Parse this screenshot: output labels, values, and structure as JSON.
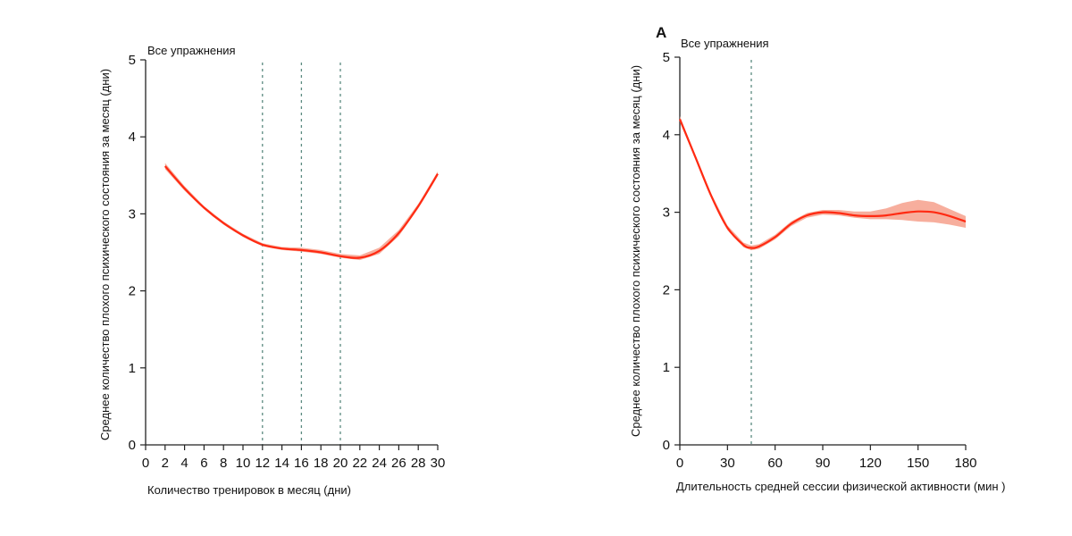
{
  "chart_data": [
    {
      "type": "line",
      "panel_label": "",
      "title": "Все упражнения",
      "xlabel": "Количество тренировок в месяц (дни)",
      "ylabel": "Среднее количество плохого психического состояния за месяц (дни)",
      "xlim": [
        0,
        30
      ],
      "ylim": [
        0,
        5
      ],
      "xticks": [
        "0",
        "2",
        "4",
        "6",
        "8",
        "10",
        "12",
        "14",
        "16",
        "18",
        "20",
        "22",
        "24",
        "26",
        "28",
        "30"
      ],
      "yticks": [
        "0",
        "1",
        "2",
        "3",
        "4",
        "5"
      ],
      "reference_lines_x": [
        12,
        16,
        20
      ],
      "series": [
        {
          "color": "#ff2a12",
          "x": [
            2,
            4,
            6,
            8,
            10,
            12,
            14,
            16,
            18,
            20,
            22,
            24,
            26,
            28,
            30
          ],
          "y": [
            3.62,
            3.33,
            3.08,
            2.88,
            2.72,
            2.6,
            2.55,
            2.53,
            2.5,
            2.45,
            2.43,
            2.52,
            2.75,
            3.1,
            3.52
          ],
          "ci_lower": [
            3.58,
            3.3,
            3.06,
            2.86,
            2.7,
            2.58,
            2.53,
            2.51,
            2.48,
            2.43,
            2.4,
            2.48,
            2.71,
            3.07,
            3.49
          ],
          "ci_upper": [
            3.66,
            3.36,
            3.1,
            2.9,
            2.74,
            2.62,
            2.57,
            2.56,
            2.53,
            2.48,
            2.46,
            2.56,
            2.79,
            3.13,
            3.55
          ]
        }
      ]
    },
    {
      "type": "line",
      "panel_label": "A",
      "title": "Все упражнения",
      "xlabel": "Длительность средней сессии физической активности (мин )",
      "ylabel": "Среднее количество плохого психического состояния за месяц (дни)",
      "xlim": [
        0,
        180
      ],
      "ylim": [
        0,
        5
      ],
      "xticks": [
        "0",
        "30",
        "60",
        "90",
        "120",
        "150",
        "180"
      ],
      "yticks": [
        "0",
        "1",
        "2",
        "3",
        "4",
        "5"
      ],
      "reference_lines_x": [
        45
      ],
      "series": [
        {
          "color": "#ff2a12",
          "x": [
            0,
            10,
            20,
            30,
            40,
            45,
            50,
            60,
            70,
            80,
            90,
            100,
            110,
            120,
            130,
            140,
            150,
            160,
            170,
            180
          ],
          "y": [
            4.2,
            3.7,
            3.2,
            2.8,
            2.58,
            2.54,
            2.56,
            2.68,
            2.85,
            2.96,
            3.0,
            2.99,
            2.96,
            2.95,
            2.96,
            2.99,
            3.01,
            3.0,
            2.95,
            2.88
          ],
          "ci_lower": [
            4.16,
            3.67,
            3.17,
            2.77,
            2.55,
            2.51,
            2.53,
            2.65,
            2.82,
            2.93,
            2.97,
            2.96,
            2.93,
            2.91,
            2.91,
            2.9,
            2.88,
            2.87,
            2.84,
            2.8
          ],
          "ci_upper": [
            4.24,
            3.73,
            3.23,
            2.83,
            2.61,
            2.57,
            2.59,
            2.71,
            2.88,
            2.99,
            3.03,
            3.03,
            3.01,
            3.01,
            3.05,
            3.12,
            3.16,
            3.13,
            3.04,
            2.95
          ]
        }
      ]
    }
  ]
}
